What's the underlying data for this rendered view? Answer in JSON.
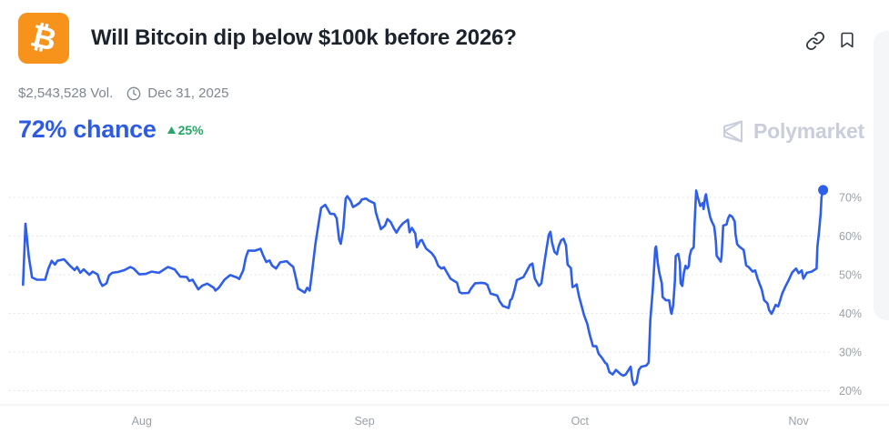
{
  "header": {
    "icon_symbol": "₿",
    "title": "Will Bitcoin dip below $100k before 2026?",
    "volume": "$2,543,528 Vol.",
    "end_date": "Dec 31, 2025"
  },
  "probability": {
    "value": "72% chance",
    "change": "25%",
    "direction": "up"
  },
  "watermark": {
    "brand": "Polymarket"
  },
  "colors": {
    "accent_blue": "#2d5be2",
    "line_blue": "#2e5eea",
    "green": "#27a567",
    "orange": "#f7931a",
    "tick_gray": "#9aa1a8",
    "grid_gray": "#dcdfe4",
    "axis_gray": "#ececef"
  },
  "chart_data": {
    "type": "line",
    "series_name": "Yes probability (%)",
    "legend": "none",
    "grid": "dotted-horizontal",
    "ylim_labeled": [
      20,
      70
    ],
    "y_ticks": [
      {
        "label": "70%",
        "v": 70
      },
      {
        "label": "60%",
        "v": 60
      },
      {
        "label": "50%",
        "v": 50
      },
      {
        "label": "40%",
        "v": 40
      },
      {
        "label": "30%",
        "v": 30
      },
      {
        "label": "20%",
        "v": 20
      }
    ],
    "x_ticks": [
      {
        "label": "Aug",
        "u": 16.2
      },
      {
        "label": "Sep",
        "u": 43.4
      },
      {
        "label": "Oct",
        "u": 69.7
      },
      {
        "label": "Nov",
        "u": 96.4
      }
    ],
    "end_dot": true,
    "latest_value": 72,
    "points": [
      [
        1.7,
        47.4
      ],
      [
        2.0,
        63.2
      ],
      [
        2.4,
        54.8
      ],
      [
        2.8,
        49.3
      ],
      [
        3.4,
        48.7
      ],
      [
        4.4,
        48.7
      ],
      [
        4.8,
        51.6
      ],
      [
        5.2,
        53.6
      ],
      [
        5.6,
        52.6
      ],
      [
        5.9,
        53.6
      ],
      [
        6.7,
        54.0
      ],
      [
        7.4,
        52.4
      ],
      [
        8.0,
        51.2
      ],
      [
        8.3,
        52.0
      ],
      [
        8.7,
        50.5
      ],
      [
        9.1,
        51.4
      ],
      [
        9.8,
        50.0
      ],
      [
        10.2,
        50.8
      ],
      [
        10.8,
        50.1
      ],
      [
        11.1,
        48.2
      ],
      [
        11.4,
        47.1
      ],
      [
        11.9,
        47.8
      ],
      [
        12.2,
        49.8
      ],
      [
        12.6,
        50.5
      ],
      [
        13.3,
        50.7
      ],
      [
        14.1,
        51.2
      ],
      [
        14.8,
        52.0
      ],
      [
        15.2,
        51.6
      ],
      [
        15.9,
        50.1
      ],
      [
        16.7,
        50.2
      ],
      [
        17.4,
        50.8
      ],
      [
        18.3,
        50.5
      ],
      [
        19.1,
        51.6
      ],
      [
        19.4,
        52.0
      ],
      [
        20.2,
        51.4
      ],
      [
        20.9,
        49.5
      ],
      [
        21.7,
        49.4
      ],
      [
        22.0,
        48.4
      ],
      [
        22.4,
        48.7
      ],
      [
        23.1,
        46.2
      ],
      [
        23.6,
        47.2
      ],
      [
        24.2,
        47.7
      ],
      [
        25.0,
        46.6
      ],
      [
        25.2,
        45.9
      ],
      [
        25.6,
        46.6
      ],
      [
        26.3,
        48.7
      ],
      [
        27.0,
        49.9
      ],
      [
        27.8,
        49.3
      ],
      [
        28.1,
        48.9
      ],
      [
        28.6,
        51.2
      ],
      [
        28.9,
        54.4
      ],
      [
        29.2,
        56.2
      ],
      [
        30.0,
        56.2
      ],
      [
        30.7,
        56.7
      ],
      [
        31.0,
        55.1
      ],
      [
        31.4,
        53.3
      ],
      [
        31.8,
        53.7
      ],
      [
        32.1,
        52.4
      ],
      [
        32.6,
        51.6
      ],
      [
        33.1,
        53.2
      ],
      [
        33.9,
        53.5
      ],
      [
        34.2,
        52.9
      ],
      [
        34.7,
        52.0
      ],
      [
        35.0,
        49.3
      ],
      [
        35.3,
        46.4
      ],
      [
        36.1,
        45.4
      ],
      [
        36.4,
        46.6
      ],
      [
        36.7,
        45.9
      ],
      [
        37.0,
        50.8
      ],
      [
        37.4,
        57.9
      ],
      [
        37.8,
        63.4
      ],
      [
        38.1,
        67.3
      ],
      [
        38.6,
        68.1
      ],
      [
        38.9,
        67.0
      ],
      [
        39.2,
        65.8
      ],
      [
        39.7,
        65.7
      ],
      [
        40.0,
        64.6
      ],
      [
        40.3,
        59.1
      ],
      [
        40.5,
        58.0
      ],
      [
        40.8,
        61.9
      ],
      [
        41.1,
        69.7
      ],
      [
        41.3,
        70.3
      ],
      [
        41.7,
        69.1
      ],
      [
        42.0,
        67.5
      ],
      [
        42.4,
        68.0
      ],
      [
        42.8,
        68.6
      ],
      [
        43.1,
        69.5
      ],
      [
        43.6,
        69.7
      ],
      [
        43.9,
        69.2
      ],
      [
        44.6,
        68.5
      ],
      [
        44.8,
        66.0
      ],
      [
        45.2,
        63.2
      ],
      [
        45.4,
        61.8
      ],
      [
        45.9,
        62.7
      ],
      [
        46.2,
        64.4
      ],
      [
        46.6,
        63.6
      ],
      [
        47.0,
        61.9
      ],
      [
        47.3,
        60.9
      ],
      [
        47.7,
        62.3
      ],
      [
        48.1,
        63.3
      ],
      [
        48.7,
        64.2
      ],
      [
        48.9,
        61.0
      ],
      [
        49.2,
        62.1
      ],
      [
        49.6,
        60.6
      ],
      [
        49.8,
        57.1
      ],
      [
        50.2,
        58.8
      ],
      [
        50.4,
        59.0
      ],
      [
        50.9,
        56.8
      ],
      [
        51.6,
        55.6
      ],
      [
        52.0,
        54.4
      ],
      [
        52.4,
        52.3
      ],
      [
        52.8,
        51.6
      ],
      [
        53.1,
        51.9
      ],
      [
        53.6,
        50.1
      ],
      [
        53.9,
        49.0
      ],
      [
        54.7,
        47.9
      ],
      [
        55.0,
        45.5
      ],
      [
        55.3,
        45.2
      ],
      [
        56.1,
        45.3
      ],
      [
        56.4,
        46.4
      ],
      [
        56.9,
        47.8
      ],
      [
        57.7,
        47.9
      ],
      [
        58.1,
        47.8
      ],
      [
        58.4,
        47.4
      ],
      [
        58.8,
        45.1
      ],
      [
        59.6,
        44.6
      ],
      [
        59.9,
        43.1
      ],
      [
        60.3,
        41.9
      ],
      [
        60.7,
        41.6
      ],
      [
        61.0,
        41.4
      ],
      [
        61.2,
        43.4
      ],
      [
        61.4,
        43.8
      ],
      [
        61.7,
        45.9
      ],
      [
        62.0,
        48.6
      ],
      [
        62.8,
        49.4
      ],
      [
        63.1,
        50.5
      ],
      [
        63.6,
        52.5
      ],
      [
        63.9,
        52.9
      ],
      [
        64.2,
        49.0
      ],
      [
        64.7,
        47.1
      ],
      [
        65.0,
        47.8
      ],
      [
        65.2,
        50.8
      ],
      [
        65.6,
        56.4
      ],
      [
        65.9,
        60.3
      ],
      [
        66.1,
        61.1
      ],
      [
        66.3,
        58.3
      ],
      [
        66.6,
        55.9
      ],
      [
        66.9,
        55.3
      ],
      [
        67.1,
        57.3
      ],
      [
        67.4,
        58.9
      ],
      [
        67.7,
        59.3
      ],
      [
        68.0,
        57.6
      ],
      [
        68.2,
        52.6
      ],
      [
        68.6,
        51.7
      ],
      [
        68.8,
        46.8
      ],
      [
        69.1,
        47.1
      ],
      [
        69.3,
        47.5
      ],
      [
        69.6,
        44.3
      ],
      [
        69.8,
        42.8
      ],
      [
        70.2,
        39.6
      ],
      [
        70.6,
        37.3
      ],
      [
        70.9,
        34.5
      ],
      [
        71.3,
        31.5
      ],
      [
        71.7,
        31.5
      ],
      [
        72.0,
        29.5
      ],
      [
        72.4,
        28.5
      ],
      [
        72.8,
        27.2
      ],
      [
        73.0,
        26.9
      ],
      [
        73.3,
        24.8
      ],
      [
        73.7,
        24.2
      ],
      [
        74.1,
        25.4
      ],
      [
        74.7,
        24.2
      ],
      [
        75.0,
        23.9
      ],
      [
        75.3,
        24.2
      ],
      [
        75.9,
        26.2
      ],
      [
        76.1,
        22.7
      ],
      [
        76.3,
        21.5
      ],
      [
        76.6,
        22.0
      ],
      [
        76.9,
        25.4
      ],
      [
        77.2,
        26.2
      ],
      [
        77.8,
        26.5
      ],
      [
        78.1,
        27.3
      ],
      [
        78.3,
        38.3
      ],
      [
        78.6,
        46.2
      ],
      [
        78.9,
        56.8
      ],
      [
        79.0,
        57.3
      ],
      [
        79.2,
        53.2
      ],
      [
        79.4,
        50.5
      ],
      [
        79.7,
        47.8
      ],
      [
        79.8,
        44.2
      ],
      [
        80.2,
        43.4
      ],
      [
        80.6,
        43.4
      ],
      [
        80.8,
        40.5
      ],
      [
        80.9,
        39.9
      ],
      [
        81.1,
        42.2
      ],
      [
        81.3,
        48.5
      ],
      [
        81.4,
        54.8
      ],
      [
        81.7,
        55.4
      ],
      [
        81.9,
        53.2
      ],
      [
        82.0,
        47.8
      ],
      [
        82.2,
        47.1
      ],
      [
        82.4,
        50.5
      ],
      [
        82.6,
        52.3
      ],
      [
        82.8,
        51.6
      ],
      [
        83.0,
        52.2
      ],
      [
        83.1,
        54.8
      ],
      [
        83.3,
        56.4
      ],
      [
        83.6,
        57.1
      ],
      [
        83.7,
        63.0
      ],
      [
        83.9,
        71.8
      ],
      [
        84.1,
        70.0
      ],
      [
        84.4,
        67.8
      ],
      [
        84.7,
        68.6
      ],
      [
        84.8,
        67.0
      ],
      [
        85.0,
        70.2
      ],
      [
        85.1,
        70.8
      ],
      [
        85.3,
        68.1
      ],
      [
        85.6,
        65.0
      ],
      [
        85.8,
        63.8
      ],
      [
        86.1,
        62.5
      ],
      [
        86.3,
        58.8
      ],
      [
        86.4,
        54.9
      ],
      [
        86.9,
        53.4
      ],
      [
        87.0,
        54.8
      ],
      [
        87.2,
        62.7
      ],
      [
        87.6,
        63.0
      ],
      [
        87.8,
        64.6
      ],
      [
        88.0,
        65.4
      ],
      [
        88.3,
        65.0
      ],
      [
        88.6,
        63.8
      ],
      [
        88.7,
        60.6
      ],
      [
        88.9,
        57.9
      ],
      [
        89.2,
        57.2
      ],
      [
        89.7,
        56.4
      ],
      [
        90.0,
        52.4
      ],
      [
        90.3,
        52.0
      ],
      [
        90.8,
        50.8
      ],
      [
        91.1,
        51.1
      ],
      [
        91.4,
        49.0
      ],
      [
        91.9,
        46.2
      ],
      [
        92.2,
        43.4
      ],
      [
        92.6,
        42.6
      ],
      [
        92.8,
        40.9
      ],
      [
        93.1,
        39.9
      ],
      [
        93.3,
        40.7
      ],
      [
        93.6,
        42.2
      ],
      [
        93.9,
        41.8
      ],
      [
        94.1,
        43.0
      ],
      [
        94.4,
        45.1
      ],
      [
        94.8,
        47.0
      ],
      [
        95.2,
        48.6
      ],
      [
        95.6,
        50.5
      ],
      [
        95.9,
        51.2
      ],
      [
        96.1,
        51.6
      ],
      [
        96.4,
        50.4
      ],
      [
        96.8,
        51.1
      ],
      [
        96.9,
        49.8
      ],
      [
        97.0,
        49.0
      ],
      [
        97.4,
        50.5
      ],
      [
        98.0,
        50.8
      ],
      [
        98.6,
        51.6
      ],
      [
        98.7,
        57.2
      ],
      [
        98.9,
        61.1
      ],
      [
        99.1,
        65.8
      ],
      [
        99.2,
        70.0
      ],
      [
        99.4,
        71.9
      ]
    ]
  }
}
